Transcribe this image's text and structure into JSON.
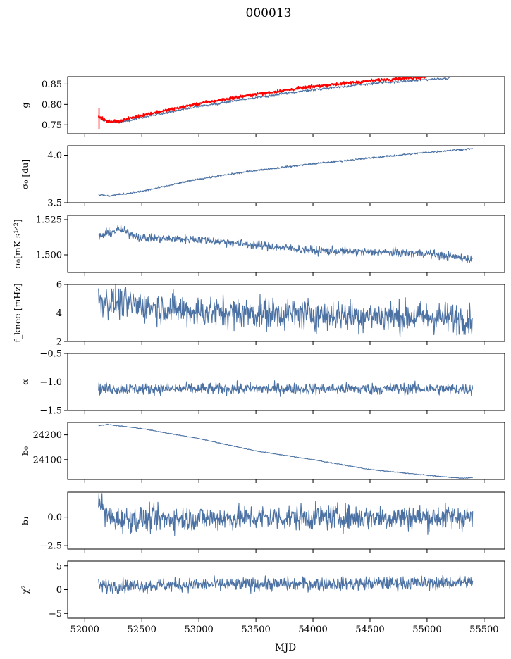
{
  "figure": {
    "title": "000013",
    "xlabel": "MJD",
    "x_ticks": [
      52000,
      52500,
      53000,
      53500,
      54000,
      54500,
      55000,
      55500
    ],
    "xlim": [
      51850,
      55680
    ]
  },
  "colors": {
    "series": "#4c72a4",
    "fit": "#ff0000"
  },
  "chart_data": [
    {
      "type": "line",
      "ylabel": "g",
      "ylim": [
        0.728,
        0.868
      ],
      "yticks": [
        0.75,
        0.8,
        0.85
      ],
      "ytick_labels": [
        "0.75",
        "0.80",
        "0.85"
      ],
      "grid": false,
      "series": [
        {
          "color": "#4c72a4",
          "noise": 0.0015,
          "x": [
            52120,
            52200,
            52300,
            52500,
            53000,
            53500,
            54000,
            54500,
            55000,
            55200
          ],
          "y": [
            0.77,
            0.757,
            0.756,
            0.768,
            0.795,
            0.817,
            0.836,
            0.851,
            0.861,
            0.865
          ]
        },
        {
          "color": "#ff0000",
          "noise": 0.0018,
          "x": [
            52120,
            52200,
            52300,
            52500,
            53000,
            53500,
            54000,
            54500,
            55000
          ],
          "y": [
            0.77,
            0.758,
            0.759,
            0.773,
            0.802,
            0.825,
            0.844,
            0.858,
            0.868
          ]
        }
      ],
      "error_bars": [
        {
          "x": 52125,
          "low": 0.74,
          "high": 0.792
        }
      ]
    },
    {
      "type": "line",
      "ylabel": "σ₀ [du]",
      "ylim": [
        3.5,
        4.1
      ],
      "yticks": [
        3.5,
        4.0
      ],
      "ytick_labels": [
        "3.5",
        "4.0"
      ],
      "grid": false,
      "series": [
        {
          "color": "#4c72a4",
          "noise": 0.005,
          "x": [
            52120,
            52200,
            52500,
            53000,
            53500,
            54000,
            54500,
            55000,
            55400
          ],
          "y": [
            3.585,
            3.57,
            3.62,
            3.75,
            3.84,
            3.91,
            3.97,
            4.03,
            4.07
          ]
        }
      ]
    },
    {
      "type": "line",
      "ylabel": "σ₀[mK s¹ᐟ²]",
      "ylim": [
        1.4875,
        1.528
      ],
      "yticks": [
        1.5,
        1.525
      ],
      "ytick_labels": [
        "1.500",
        "1.525"
      ],
      "grid": false,
      "series": [
        {
          "color": "#4c72a4",
          "noise": 0.0015,
          "x": [
            52120,
            52300,
            52500,
            53000,
            53500,
            54000,
            54500,
            55000,
            55400
          ],
          "y": [
            1.513,
            1.518,
            1.512,
            1.511,
            1.507,
            1.503,
            1.502,
            1.501,
            1.497
          ]
        }
      ]
    },
    {
      "type": "line",
      "ylabel": "f_knee [mHz]",
      "ylim": [
        2,
        6
      ],
      "yticks": [
        2,
        4,
        6
      ],
      "ytick_labels": [
        "2",
        "4",
        "6"
      ],
      "grid": false,
      "series": [
        {
          "color": "#4c72a4",
          "noise": 0.55,
          "x": [
            52120,
            52500,
            53000,
            53500,
            54000,
            54500,
            55000,
            55400
          ],
          "y": [
            4.9,
            4.5,
            4.1,
            4.0,
            3.9,
            3.8,
            3.7,
            3.6
          ]
        }
      ]
    },
    {
      "type": "line",
      "ylabel": "α",
      "ylim": [
        -1.5,
        -0.5
      ],
      "yticks": [
        -1.5,
        -1.0,
        -0.5
      ],
      "ytick_labels": [
        "−1.5",
        "−1.0",
        "−0.5"
      ],
      "grid": false,
      "series": [
        {
          "color": "#4c72a4",
          "noise": 0.05,
          "x": [
            52120,
            53000,
            54000,
            55000,
            55400
          ],
          "y": [
            -1.12,
            -1.12,
            -1.12,
            -1.12,
            -1.13
          ]
        }
      ]
    },
    {
      "type": "line",
      "ylabel": "b₀",
      "ylim": [
        24020,
        24250
      ],
      "yticks": [
        24100,
        24200
      ],
      "ytick_labels": [
        "24100",
        "24200"
      ],
      "grid": false,
      "series": [
        {
          "color": "#4c72a4",
          "noise": 0.8,
          "x": [
            52120,
            52200,
            52500,
            53000,
            53500,
            54000,
            54500,
            55000,
            55300,
            55400
          ],
          "y": [
            24237,
            24242,
            24225,
            24185,
            24135,
            24100,
            24060,
            24037,
            24025,
            24027
          ]
        }
      ]
    },
    {
      "type": "line",
      "ylabel": "b₁",
      "ylim": [
        -2.8,
        2.2
      ],
      "yticks": [
        -2.5,
        0.0
      ],
      "ytick_labels": [
        "−2.5",
        "0.0"
      ],
      "grid": false,
      "series": [
        {
          "color": "#4c72a4",
          "noise": 0.55,
          "x": [
            52120,
            52170,
            52250,
            53000,
            54000,
            55000,
            55400
          ],
          "y": [
            1.9,
            0.3,
            -0.2,
            -0.1,
            0.0,
            0.0,
            0.0
          ]
        }
      ]
    },
    {
      "type": "line",
      "ylabel": "χ²",
      "ylim": [
        -6,
        6
      ],
      "yticks": [
        -5,
        0,
        5
      ],
      "ytick_labels": [
        "−5",
        "0",
        "5"
      ],
      "grid": false,
      "series": [
        {
          "color": "#4c72a4",
          "noise": 0.7,
          "x": [
            52120,
            53000,
            54000,
            55000,
            55400
          ],
          "y": [
            0.8,
            1.0,
            1.2,
            1.4,
            1.6
          ]
        }
      ]
    }
  ]
}
